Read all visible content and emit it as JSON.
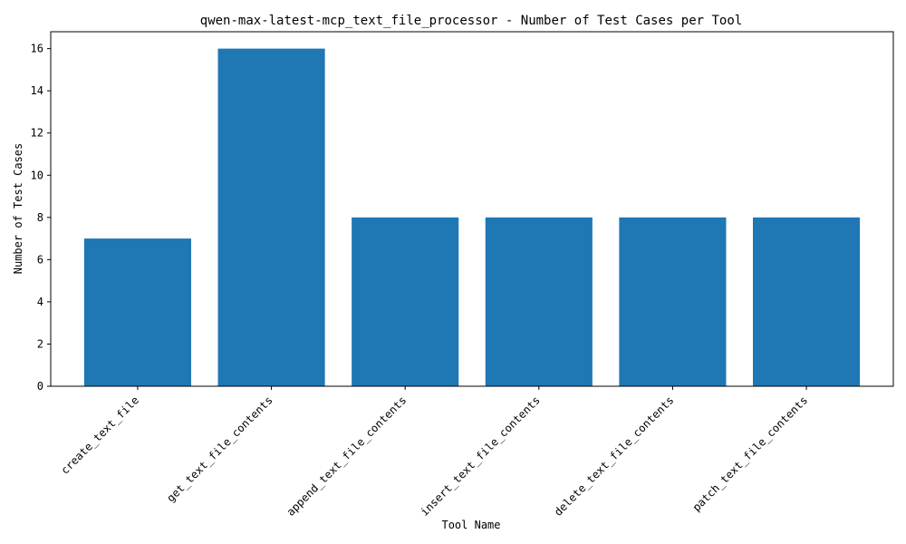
{
  "chart_data": {
    "type": "bar",
    "title": "qwen-max-latest-mcp_text_file_processor - Number of Test Cases per Tool",
    "xlabel": "Tool Name",
    "ylabel": "Number of Test Cases",
    "categories": [
      "create_text_file",
      "get_text_file_contents",
      "append_text_file_contents",
      "insert_text_file_contents",
      "delete_text_file_contents",
      "patch_text_file_contents"
    ],
    "values": [
      7,
      16,
      8,
      8,
      8,
      8
    ],
    "ylim": [
      0,
      16.8
    ],
    "yticks": [
      0,
      2,
      4,
      6,
      8,
      10,
      12,
      14,
      16
    ],
    "grid": false,
    "bar_color": "#1f77b4"
  }
}
